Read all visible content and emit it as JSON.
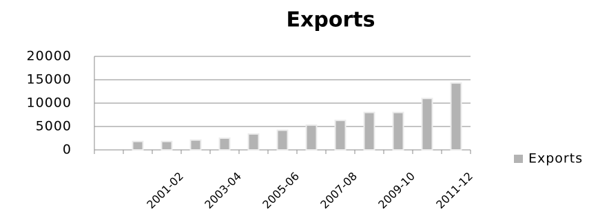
{
  "chart_data": {
    "type": "bar",
    "title": "Exports",
    "categories": [
      null,
      null,
      "2001-02",
      null,
      "2003-04",
      null,
      "2005-06",
      null,
      "2007-08",
      null,
      "2009-10",
      null,
      "2011-12"
    ],
    "series": [
      {
        "name": "Exports",
        "color": "#b3b3b3",
        "values": [
          null,
          1800,
          1800,
          2100,
          2500,
          3400,
          4200,
          5300,
          6300,
          8000,
          8000,
          11000,
          14300
        ]
      }
    ],
    "ylim": [
      0,
      20000
    ],
    "yticks": [
      0,
      5000,
      10000,
      15000,
      20000
    ],
    "grid": true,
    "legend": "right"
  }
}
